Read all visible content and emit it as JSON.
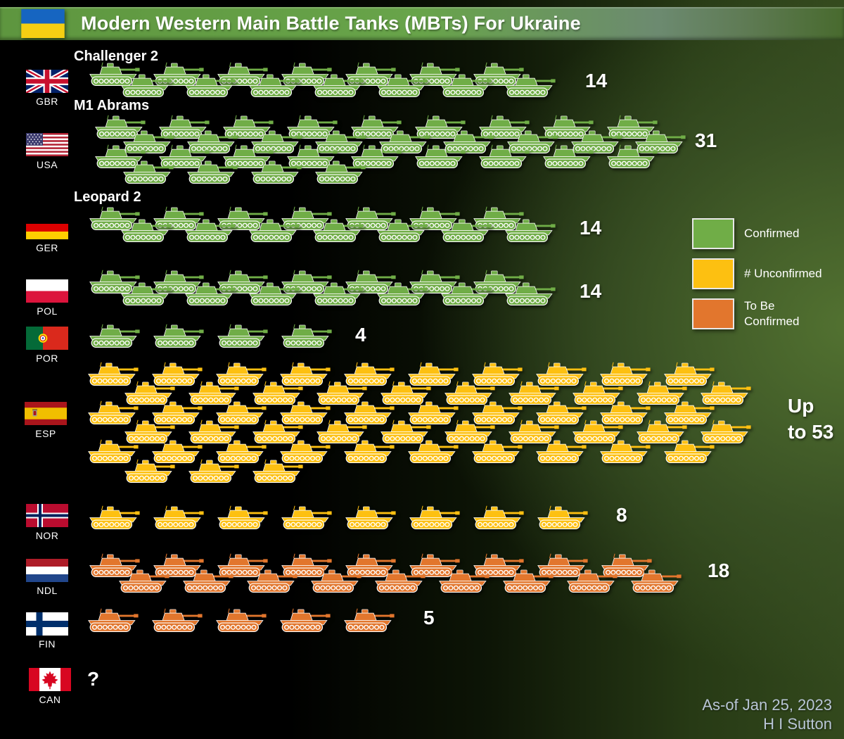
{
  "title": "Modern Western Main Battle Tanks (MBTs) For Ukraine",
  "chart_data": {
    "type": "pictogram",
    "title": "Modern Western Main Battle Tanks (MBTs) For Ukraine",
    "icon": "tank",
    "icon_unit": 1,
    "legend": [
      {
        "status": "confirmed",
        "label": "Confirmed",
        "color": "#70ad47"
      },
      {
        "status": "unconfirmed",
        "label": "# Unconfirmed",
        "color": "#fdc011"
      },
      {
        "status": "tbc",
        "label": "To Be Confirmed",
        "color": "#e2762d"
      }
    ],
    "series": [
      {
        "country": "GBR",
        "tank_type": "Challenger 2",
        "show_type_heading": true,
        "status": "confirmed",
        "value": 14,
        "count_label": "14",
        "icon_rows": [
          7,
          7
        ]
      },
      {
        "country": "USA",
        "tank_type": "M1 Abrams",
        "show_type_heading": true,
        "status": "confirmed",
        "value": 31,
        "count_label": "31",
        "icon_rows": [
          9,
          9,
          9,
          4
        ]
      },
      {
        "country": "GER",
        "tank_type": "Leopard 2",
        "show_type_heading": true,
        "status": "confirmed",
        "value": 14,
        "count_label": "14",
        "icon_rows": [
          7,
          7
        ]
      },
      {
        "country": "POL",
        "tank_type": "Leopard 2",
        "show_type_heading": false,
        "status": "confirmed",
        "value": 14,
        "count_label": "14",
        "icon_rows": [
          7,
          7
        ]
      },
      {
        "country": "POR",
        "tank_type": "Leopard 2",
        "show_type_heading": false,
        "status": "confirmed",
        "value": 4,
        "count_label": "4",
        "icon_rows": [
          4
        ]
      },
      {
        "country": "ESP",
        "tank_type": "Leopard 2",
        "show_type_heading": false,
        "status": "unconfirmed",
        "value": 53,
        "count_label": "Up\nto 53",
        "icon_rows": [
          10,
          10,
          10,
          10,
          10,
          3
        ]
      },
      {
        "country": "NOR",
        "tank_type": "Leopard 2",
        "show_type_heading": false,
        "status": "unconfirmed",
        "value": 8,
        "count_label": "8",
        "icon_rows": [
          8
        ]
      },
      {
        "country": "NDL",
        "tank_type": "Leopard 2",
        "show_type_heading": false,
        "status": "tbc",
        "value": 18,
        "count_label": "18",
        "icon_rows": [
          9,
          9
        ]
      },
      {
        "country": "FIN",
        "tank_type": "Leopard 2",
        "show_type_heading": false,
        "status": "tbc",
        "value": 5,
        "count_label": "5",
        "icon_rows": [
          5
        ]
      },
      {
        "country": "CAN",
        "tank_type": "Leopard 2",
        "show_type_heading": false,
        "status": "unknown",
        "value": null,
        "count_label": "?",
        "icon_rows": []
      }
    ]
  },
  "footer": {
    "as_of": "As-of Jan 25, 2023",
    "author": "H I Sutton"
  }
}
